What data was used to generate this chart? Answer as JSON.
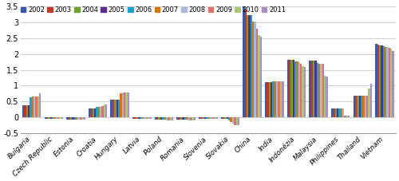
{
  "categories": [
    "Bulgaria",
    "Czech Republic",
    "Estonia",
    "Croatia",
    "Hungary",
    "Latvia",
    "Poland",
    "Romania",
    "Slovenia",
    "Slovakia",
    "China",
    "India",
    "Indonézia",
    "Malaysia",
    "Philippines",
    "Thailand",
    "Vietnam"
  ],
  "years": [
    "2002",
    "2003",
    "2004",
    "2005",
    "2006",
    "2007",
    "2008",
    "2009",
    "2010",
    "2011"
  ],
  "colors": [
    "#3A5AA8",
    "#C0392B",
    "#70A030",
    "#5B2D8E",
    "#1FA0C8",
    "#D4780A",
    "#A8B8D8",
    "#E07070",
    "#A8C878",
    "#A890C0"
  ],
  "values": {
    "Bulgaria": [
      0.37,
      0.37,
      0.37,
      0.37,
      0.64,
      0.65,
      0.65,
      0.65,
      0.65,
      0.75
    ],
    "Czech Republic": [
      -0.04,
      -0.04,
      -0.04,
      -0.04,
      -0.04,
      -0.04,
      -0.04,
      -0.04,
      -0.04,
      -0.04
    ],
    "Estonia": [
      -0.06,
      -0.06,
      -0.06,
      -0.06,
      -0.06,
      -0.06,
      -0.06,
      -0.06,
      -0.06,
      -0.06
    ],
    "Croatia": [
      0.28,
      0.28,
      0.28,
      0.28,
      0.32,
      0.32,
      0.32,
      0.35,
      0.4,
      0.4
    ],
    "Hungary": [
      0.55,
      0.55,
      0.55,
      0.55,
      0.55,
      0.75,
      0.78,
      0.78,
      0.78,
      0.78
    ],
    "Latvia": [
      -0.05,
      -0.05,
      -0.05,
      -0.05,
      -0.05,
      -0.05,
      -0.05,
      -0.05,
      -0.05,
      -0.05
    ],
    "Poland": [
      -0.06,
      -0.06,
      -0.06,
      -0.06,
      -0.06,
      -0.08,
      -0.1,
      -0.1,
      -0.1,
      -0.1
    ],
    "Romania": [
      -0.06,
      -0.06,
      -0.06,
      -0.06,
      -0.06,
      -0.08,
      -0.1,
      -0.1,
      -0.1,
      -0.1
    ],
    "Slovenia": [
      -0.04,
      -0.04,
      -0.04,
      -0.04,
      -0.04,
      -0.04,
      -0.04,
      -0.04,
      -0.04,
      -0.04
    ],
    "Slovakia": [
      -0.05,
      -0.05,
      -0.05,
      -0.05,
      -0.1,
      -0.15,
      -0.2,
      -0.25,
      -0.25,
      -0.25
    ],
    "China": [
      3.52,
      3.4,
      3.22,
      3.22,
      3.22,
      3.02,
      3.02,
      2.8,
      2.6,
      2.55
    ],
    "India": [
      1.1,
      1.1,
      1.1,
      1.1,
      1.14,
      1.14,
      1.14,
      1.14,
      1.14,
      1.14
    ],
    "Indonézia": [
      1.82,
      1.82,
      1.82,
      1.82,
      1.76,
      1.76,
      1.75,
      1.68,
      1.62,
      1.6
    ],
    "Malaysia": [
      1.79,
      1.79,
      1.79,
      1.79,
      1.72,
      1.7,
      1.7,
      1.68,
      1.32,
      1.28
    ],
    "Philippines": [
      0.28,
      0.28,
      0.28,
      0.28,
      0.28,
      0.28,
      0.28,
      0.05,
      0.05,
      0.05
    ],
    "Thailand": [
      0.68,
      0.68,
      0.68,
      0.68,
      0.68,
      0.68,
      0.68,
      0.68,
      0.9,
      1.05
    ],
    "Vietnam": [
      2.33,
      2.3,
      2.28,
      2.28,
      2.25,
      2.23,
      2.23,
      2.2,
      2.18,
      2.1
    ]
  },
  "ylim": [
    -0.5,
    3.5
  ],
  "yticks": [
    -0.5,
    0.0,
    0.5,
    1.0,
    1.5,
    2.0,
    2.5,
    3.0,
    3.5
  ],
  "background_color": "#FFFFFF",
  "grid_color": "#C8C8C8",
  "figsize": [
    5.0,
    2.27
  ],
  "dpi": 100
}
